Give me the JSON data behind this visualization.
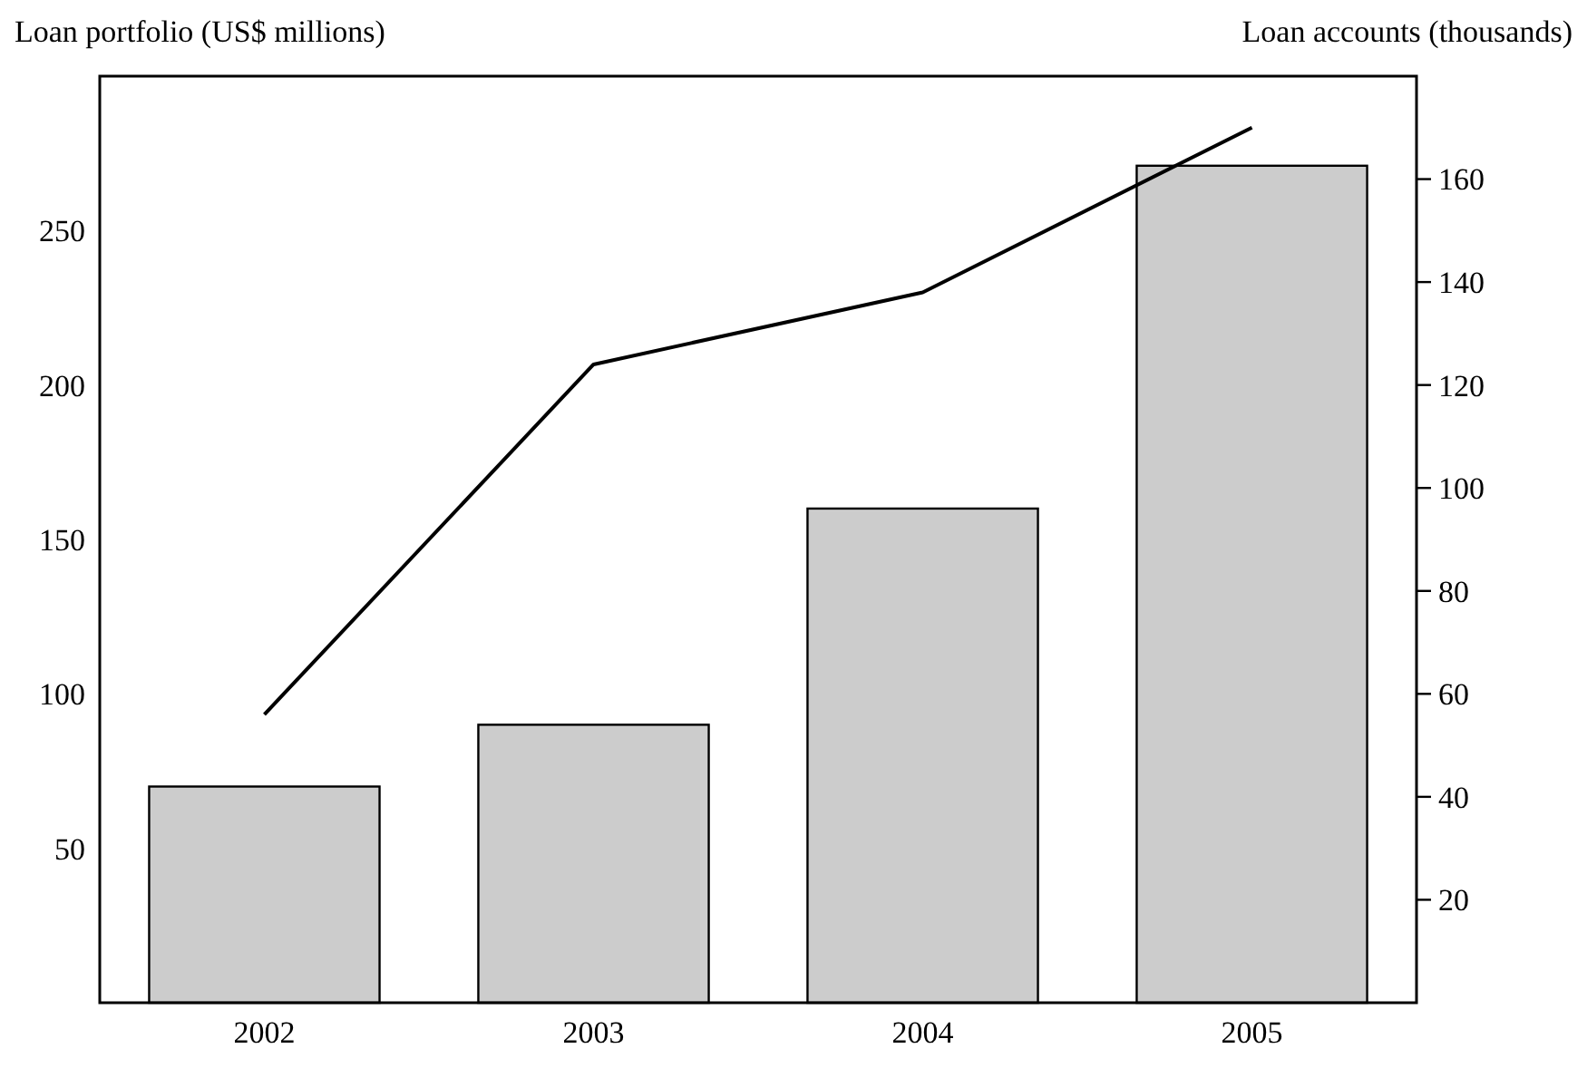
{
  "chart_data": {
    "type": "bar",
    "ylabel": "Loan portfolio (US$ millions)",
    "y2label": "Loan accounts (thousands)",
    "categories": [
      "2002",
      "2003",
      "2004",
      "2005"
    ],
    "series": [
      {
        "color": "#cccccc",
        "values": [
          70,
          90,
          160,
          271
        ]
      },
      {
        "type": "line",
        "axis": "y2",
        "color": "#000000",
        "values": [
          56,
          124,
          138,
          170
        ]
      }
    ],
    "ylim": [
      0,
      300
    ],
    "yticks": [
      50,
      100,
      150,
      200,
      250
    ],
    "y2lim": [
      0,
      180
    ],
    "y2ticks": [
      20,
      40,
      60,
      80,
      100,
      120,
      140,
      160
    ],
    "grid": false,
    "marker": "none",
    "line_style": "solid"
  }
}
